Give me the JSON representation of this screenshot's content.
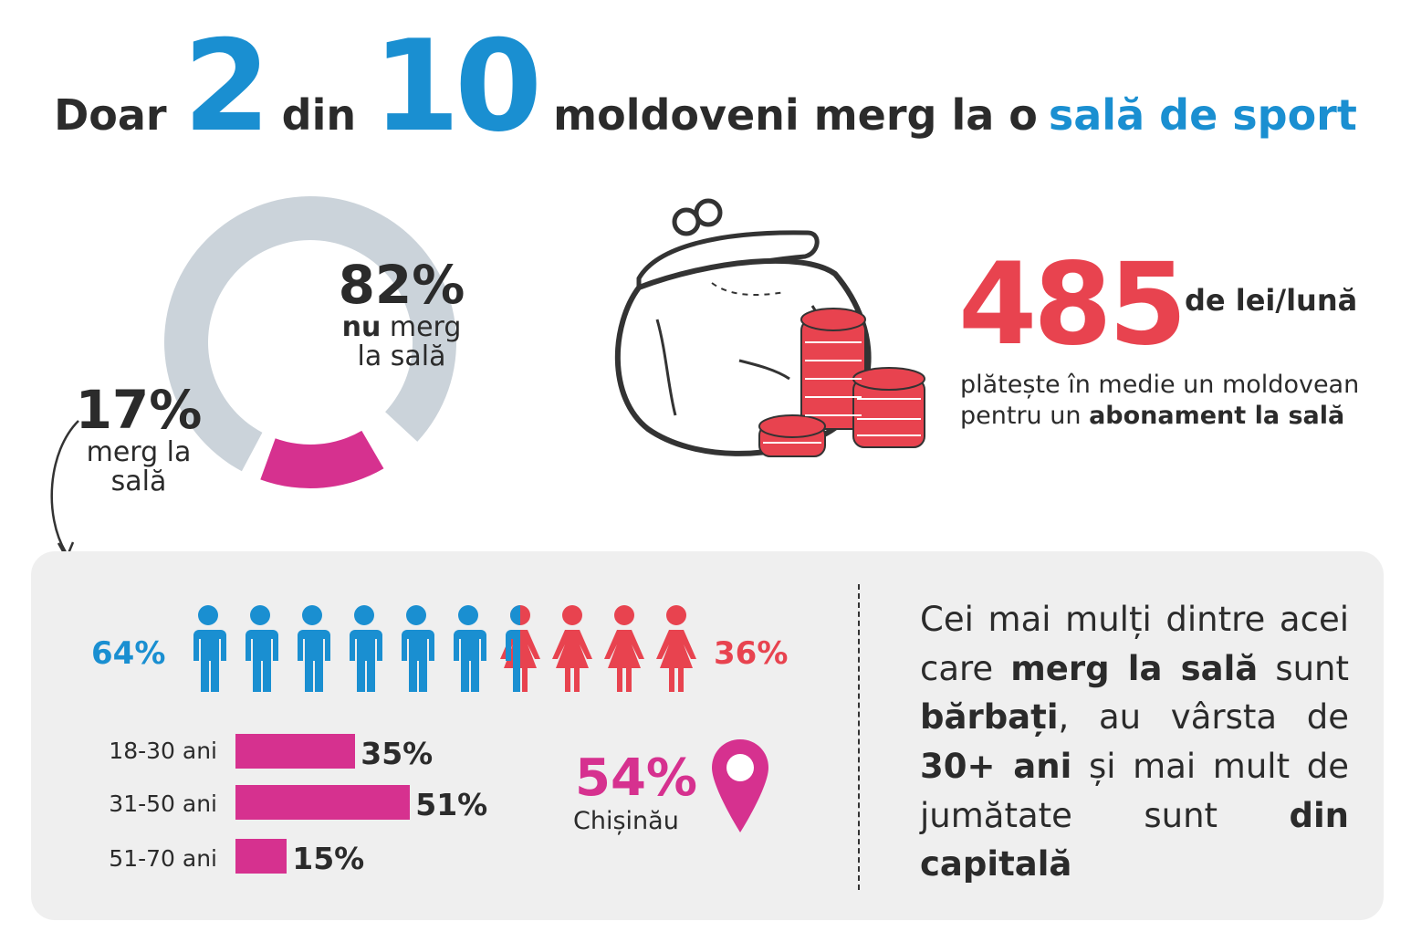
{
  "headline": {
    "w1": "Doar",
    "n1": "2",
    "w2": "din",
    "n2": "10",
    "w3": "moldoveni merg la o",
    "accent": "sală de sport"
  },
  "donut": {
    "no_pct": "82%",
    "no_label_bold": "nu",
    "no_label_rest": "merg",
    "no_label_line2": "la sală",
    "yes_pct": "17%",
    "yes_label_line1": "merg la",
    "yes_label_line2": "sală"
  },
  "price": {
    "value": "485",
    "unit": "de lei/lună",
    "desc_line1": "plătește în medie un moldovean",
    "desc_line2_pre": "pentru un",
    "desc_line2_bold": "abonament la sală"
  },
  "gender": {
    "male_pct": "64%",
    "female_pct": "36%"
  },
  "city": {
    "pct": "54%",
    "name": "Chișinău"
  },
  "summary": {
    "t1": "Cei mai mulți dintre acei care",
    "b1": "merg la sală",
    "t2": "sunt",
    "b2": "bărbați",
    "t3": ", au vârsta de",
    "b3": "30+ ani",
    "t4": "și mai mult de jumătate sunt",
    "b4": "din capitală"
  },
  "colors": {
    "blue": "#1a8fd1",
    "red": "#e8434f",
    "magenta": "#d6318f",
    "grey": "#cbd3da",
    "dark": "#2b2b2b"
  },
  "chart_data": [
    {
      "type": "pie",
      "categories": [
        "nu merg la sală",
        "merg la sală"
      ],
      "values": [
        82,
        17
      ],
      "colors": [
        "#cbd3da",
        "#d6318f"
      ]
    },
    {
      "type": "bar",
      "categories": [
        "18-30 ani",
        "31-50 ani",
        "51-70 ani"
      ],
      "values": [
        35,
        51,
        15
      ],
      "value_labels": [
        "35%",
        "51%",
        "15%"
      ],
      "xlim": [
        0,
        100
      ]
    },
    {
      "type": "bar",
      "categories": [
        "male",
        "female"
      ],
      "values": [
        64,
        36
      ]
    }
  ]
}
